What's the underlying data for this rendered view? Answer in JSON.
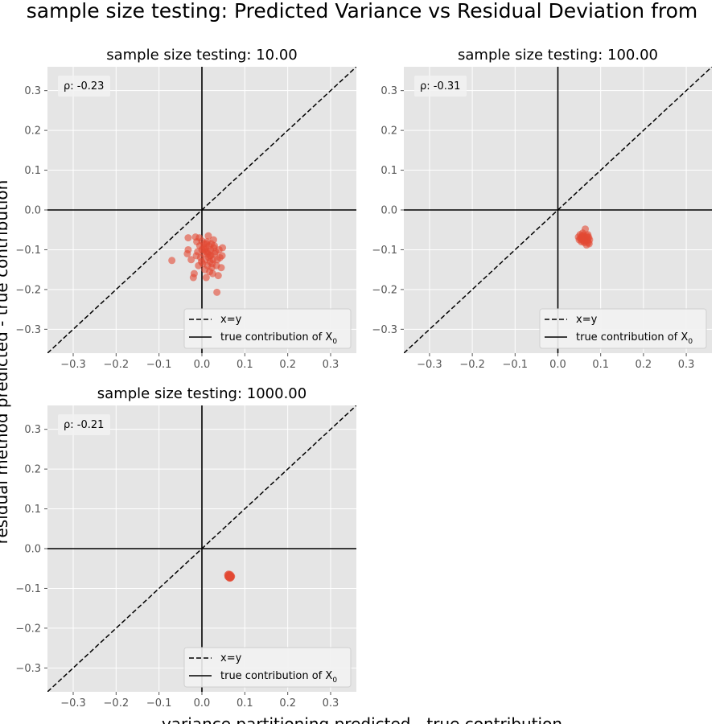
{
  "figure": {
    "suptitle": "sample size testing: Predicted Variance vs Residual Deviation from",
    "xlabel": "variance partitioning predicted - true contribution",
    "ylabel": "residual method predicted - true contribution"
  },
  "colors": {
    "panel_bg": "#e5e5e5",
    "grid": "#ffffff",
    "points": "#e24a33",
    "lines": "#000000",
    "tick_text": "#555555"
  },
  "legend_labels": {
    "xy": "x=y",
    "true": "true contribution of X",
    "true_sub": "0"
  },
  "chart_data": [
    {
      "type": "scatter",
      "title": "sample size testing: 10.00",
      "rho_label": "ρ: -0.23",
      "xlim": [
        -0.36,
        0.36
      ],
      "ylim": [
        -0.36,
        0.36
      ],
      "xticks": [
        -0.3,
        -0.2,
        -0.1,
        0.0,
        0.1,
        0.2,
        0.3
      ],
      "yticks": [
        -0.3,
        -0.2,
        -0.1,
        0.0,
        0.1,
        0.2,
        0.3
      ],
      "tick_labels": [
        "−0.3",
        "−0.2",
        "−0.1",
        "0.0",
        "0.1",
        "0.2",
        "0.3"
      ],
      "legend": "lower-right",
      "grid": true,
      "points": [
        [
          -0.07,
          -0.127
        ],
        [
          -0.032,
          -0.07
        ],
        [
          -0.032,
          -0.1
        ],
        [
          -0.034,
          -0.11
        ],
        [
          -0.025,
          -0.125
        ],
        [
          -0.02,
          -0.17
        ],
        [
          -0.018,
          -0.16
        ],
        [
          -0.015,
          -0.068
        ],
        [
          -0.013,
          -0.115
        ],
        [
          -0.012,
          -0.08
        ],
        [
          -0.01,
          -0.105
        ],
        [
          -0.008,
          -0.14
        ],
        [
          -0.006,
          -0.07
        ],
        [
          -0.005,
          -0.09
        ],
        [
          -0.003,
          -0.12
        ],
        [
          0.0,
          -0.078
        ],
        [
          0.0,
          -0.1
        ],
        [
          0.002,
          -0.135
        ],
        [
          0.004,
          -0.11
        ],
        [
          0.005,
          -0.085
        ],
        [
          0.007,
          -0.15
        ],
        [
          0.008,
          -0.095
        ],
        [
          0.009,
          -0.125
        ],
        [
          0.01,
          -0.105
        ],
        [
          0.01,
          -0.17
        ],
        [
          0.012,
          -0.08
        ],
        [
          0.013,
          -0.14
        ],
        [
          0.014,
          -0.11
        ],
        [
          0.015,
          -0.065
        ],
        [
          0.016,
          -0.12
        ],
        [
          0.017,
          -0.09
        ],
        [
          0.018,
          -0.155
        ],
        [
          0.019,
          -0.13
        ],
        [
          0.02,
          -0.1
        ],
        [
          0.021,
          -0.115
        ],
        [
          0.022,
          -0.085
        ],
        [
          0.023,
          -0.145
        ],
        [
          0.025,
          -0.16
        ],
        [
          0.026,
          -0.125
        ],
        [
          0.028,
          -0.095
        ],
        [
          0.03,
          -0.11
        ],
        [
          0.032,
          -0.105
        ],
        [
          0.034,
          -0.14
        ],
        [
          0.036,
          -0.125
        ],
        [
          0.038,
          -0.165
        ],
        [
          0.04,
          -0.1
        ],
        [
          0.042,
          -0.12
        ],
        [
          0.045,
          -0.145
        ],
        [
          0.047,
          -0.115
        ],
        [
          0.048,
          -0.095
        ],
        [
          0.035,
          -0.207
        ],
        [
          0.006,
          -0.1
        ],
        [
          0.011,
          -0.085
        ],
        [
          0.024,
          -0.135
        ],
        [
          0.015,
          -0.105
        ],
        [
          -0.001,
          -0.13
        ],
        [
          0.029,
          -0.09
        ],
        [
          0.019,
          -0.115
        ],
        [
          0.003,
          -0.095
        ],
        [
          0.027,
          -0.075
        ]
      ]
    },
    {
      "type": "scatter",
      "title": "sample size testing: 100.00",
      "rho_label": "ρ: -0.31",
      "xlim": [
        -0.36,
        0.36
      ],
      "ylim": [
        -0.36,
        0.36
      ],
      "xticks": [
        -0.3,
        -0.2,
        -0.1,
        0.0,
        0.1,
        0.2,
        0.3
      ],
      "yticks": [
        -0.3,
        -0.2,
        -0.1,
        0.0,
        0.1,
        0.2,
        0.3
      ],
      "tick_labels": [
        "−0.3",
        "−0.2",
        "−0.1",
        "0.0",
        "0.1",
        "0.2",
        "0.3"
      ],
      "legend": "lower-right",
      "grid": true,
      "points": [
        [
          0.048,
          -0.068
        ],
        [
          0.05,
          -0.075
        ],
        [
          0.052,
          -0.062
        ],
        [
          0.053,
          -0.072
        ],
        [
          0.055,
          -0.08
        ],
        [
          0.056,
          -0.066
        ],
        [
          0.057,
          -0.071
        ],
        [
          0.058,
          -0.077
        ],
        [
          0.059,
          -0.063
        ],
        [
          0.06,
          -0.07
        ],
        [
          0.061,
          -0.074
        ],
        [
          0.062,
          -0.082
        ],
        [
          0.063,
          -0.067
        ],
        [
          0.064,
          -0.048
        ],
        [
          0.065,
          -0.072
        ],
        [
          0.066,
          -0.078
        ],
        [
          0.067,
          -0.088
        ],
        [
          0.068,
          -0.065
        ],
        [
          0.069,
          -0.07
        ],
        [
          0.07,
          -0.076
        ],
        [
          0.071,
          -0.082
        ],
        [
          0.072,
          -0.069
        ],
        [
          0.073,
          -0.085
        ],
        [
          0.074,
          -0.075
        ],
        [
          0.058,
          -0.058
        ],
        [
          0.054,
          -0.07
        ],
        [
          0.06,
          -0.066
        ],
        [
          0.066,
          -0.073
        ],
        [
          0.062,
          -0.079
        ],
        [
          0.07,
          -0.062
        ]
      ]
    },
    {
      "type": "scatter",
      "title": "sample size testing: 1000.00",
      "rho_label": "ρ: -0.21",
      "xlim": [
        -0.36,
        0.36
      ],
      "ylim": [
        -0.36,
        0.36
      ],
      "xticks": [
        -0.3,
        -0.2,
        -0.1,
        0.0,
        0.1,
        0.2,
        0.3
      ],
      "yticks": [
        -0.3,
        -0.2,
        -0.1,
        0.0,
        0.1,
        0.2,
        0.3
      ],
      "tick_labels": [
        "−0.3",
        "−0.2",
        "−0.1",
        "0.0",
        "0.1",
        "0.2",
        "0.3"
      ],
      "legend": "lower-right",
      "grid": true,
      "points": [
        [
          0.06,
          -0.066
        ],
        [
          0.061,
          -0.07
        ],
        [
          0.062,
          -0.068
        ],
        [
          0.063,
          -0.072
        ],
        [
          0.064,
          -0.067
        ],
        [
          0.065,
          -0.071
        ],
        [
          0.066,
          -0.069
        ],
        [
          0.067,
          -0.073
        ],
        [
          0.068,
          -0.068
        ],
        [
          0.069,
          -0.07
        ],
        [
          0.062,
          -0.064
        ],
        [
          0.064,
          -0.074
        ],
        [
          0.066,
          -0.065
        ],
        [
          0.063,
          -0.069
        ],
        [
          0.067,
          -0.07
        ],
        [
          0.065,
          -0.067
        ],
        [
          0.061,
          -0.071
        ],
        [
          0.068,
          -0.072
        ],
        [
          0.064,
          -0.066
        ],
        [
          0.066,
          -0.074
        ]
      ]
    }
  ]
}
